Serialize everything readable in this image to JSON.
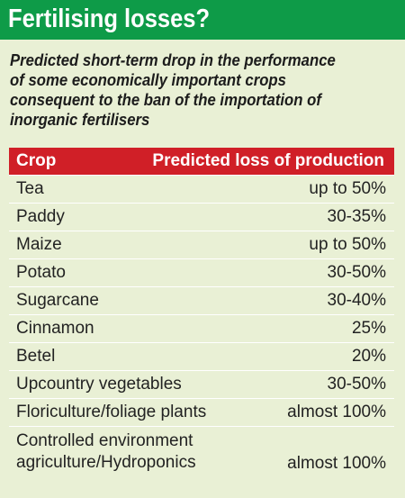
{
  "title": "Fertilising losses?",
  "subtitle_lines": [
    "Predicted short-term drop in the performance",
    "of some economically important crops",
    "consequent to the ban of the importation of",
    "inorganic fertilisers"
  ],
  "table": {
    "headers": {
      "crop": "Crop",
      "loss": "Predicted loss of production"
    },
    "rows": [
      {
        "crop": "Tea",
        "loss": "up to 50%"
      },
      {
        "crop": "Paddy",
        "loss": "30-35%"
      },
      {
        "crop": "Maize",
        "loss": "up to 50%"
      },
      {
        "crop": "Potato",
        "loss": "30-50%"
      },
      {
        "crop": "Sugarcane",
        "loss": "30-40%"
      },
      {
        "crop": "Cinnamon",
        "loss": "25%"
      },
      {
        "crop": "Betel",
        "loss": "20%"
      },
      {
        "crop": "Upcountry vegetables",
        "loss": "30-50%"
      },
      {
        "crop": "Floriculture/foliage plants",
        "loss": "almost 100%"
      },
      {
        "crop": "Controlled environment\nagriculture/Hydroponics",
        "loss": "almost 100%"
      }
    ]
  },
  "colors": {
    "background": "#e9f0d5",
    "header_bar": "#0e9b48",
    "table_header": "#d01f27"
  }
}
